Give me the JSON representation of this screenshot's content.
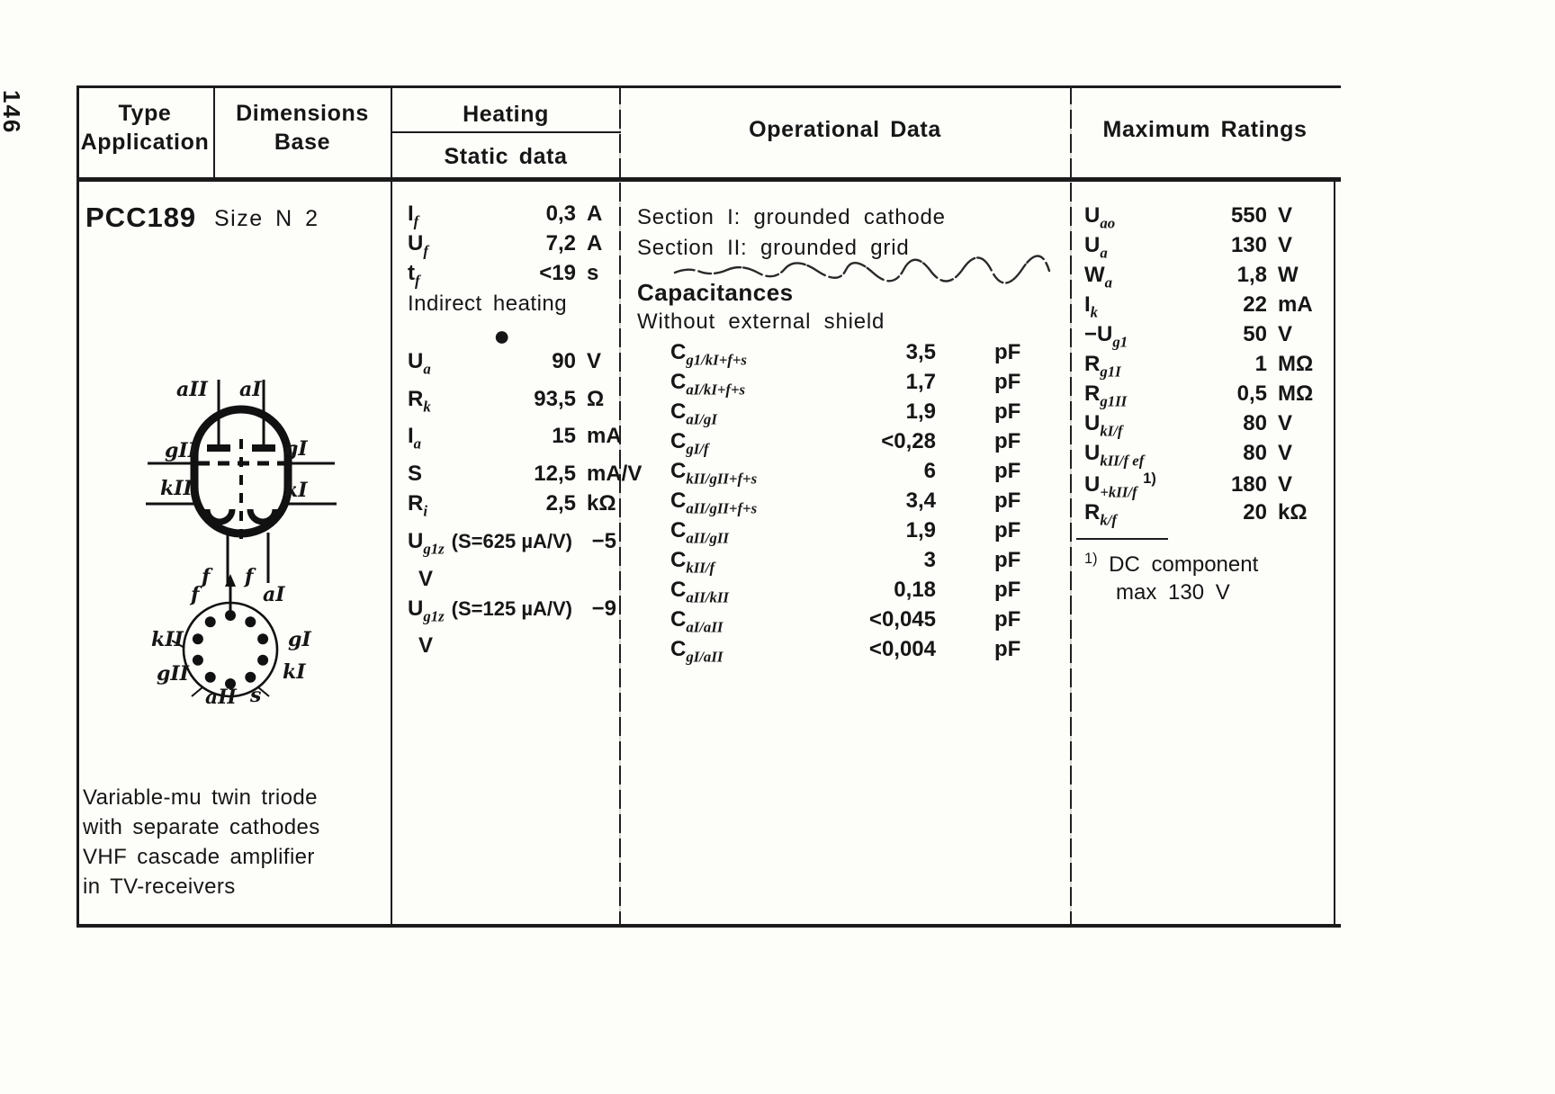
{
  "page": {
    "number": "146"
  },
  "header": {
    "col1_line1": "Type",
    "col1_line2": "Application",
    "col2_line1": "Dimensions",
    "col2_line2": "Base",
    "col3_line1": "Heating",
    "col3_line2": "Static data",
    "col4": "Operational Data",
    "col5": "Maximum Ratings"
  },
  "tube": {
    "type": "PCC189",
    "size": "Size N 2",
    "description": [
      "Variable-mu twin triode",
      "with separate cathodes",
      "VHF cascade amplifier",
      "in TV-receivers"
    ]
  },
  "heating": {
    "rows": [
      {
        "label": "I_{f}",
        "value": "0,3",
        "unit": "A"
      },
      {
        "label": "U_{f}",
        "value": "7,2",
        "unit": "A"
      },
      {
        "label": "t_{f}",
        "value": "<19",
        "unit": "s"
      }
    ],
    "note": "Indirect heating",
    "bullet": "●"
  },
  "static_data": {
    "rows": [
      {
        "label": "U_{a}",
        "cond": "",
        "value": "90",
        "unit": "V"
      },
      {
        "label": "R_{k}",
        "cond": "",
        "value": "93,5",
        "unit": "Ω"
      },
      {
        "label": "I_{a}",
        "cond": "",
        "value": "15",
        "unit": "mA"
      },
      {
        "label": "S",
        "cond": "",
        "value": "12,5",
        "unit": "mA/V"
      },
      {
        "label": "R_{i}",
        "cond": "",
        "value": "2,5",
        "unit": "kΩ"
      },
      {
        "label": "U_{g1z}",
        "cond": "(S=625 µA/V)",
        "value": "−5",
        "unit": "V"
      },
      {
        "label": "U_{g1z}",
        "cond": "(S=125 µA/V)",
        "value": "−9",
        "unit": "V"
      }
    ]
  },
  "operational": {
    "section1": "Section I: grounded cathode",
    "section2": "Section II: grounded grid",
    "capacitances_title": "Capacitances",
    "capacitances_subtitle": "Without external shield",
    "rows": [
      {
        "label": "C_{g1/kI+f+s}",
        "value": "3,5",
        "unit": "pF"
      },
      {
        "label": "C_{aI/kI+f+s}",
        "value": "1,7",
        "unit": "pF"
      },
      {
        "label": "C_{aI/gI}",
        "value": "1,9",
        "unit": "pF"
      },
      {
        "label": "C_{gI/f}",
        "value": "<0,28",
        "unit": "pF"
      },
      {
        "label": "C_{kII/gII+f+s}",
        "value": "6",
        "unit": "pF"
      },
      {
        "label": "C_{aII/gII+f+s}",
        "value": "3,4",
        "unit": "pF"
      },
      {
        "label": "C_{aII/gII}",
        "value": "1,9",
        "unit": "pF"
      },
      {
        "label": "C_{kII/f}",
        "value": "3",
        "unit": "pF"
      },
      {
        "label": "C_{aII/kII}",
        "value": "0,18",
        "unit": "pF"
      },
      {
        "label": "C_{aI/aII}",
        "value": "<0,045",
        "unit": "pF"
      },
      {
        "label": "C_{gI/aII}",
        "value": "<0,004",
        "unit": "pF"
      }
    ]
  },
  "max_ratings": {
    "rows": [
      {
        "label": "U_{ao}",
        "value": "550",
        "unit": "V"
      },
      {
        "label": "U_{a}",
        "value": "130",
        "unit": "V"
      },
      {
        "label": "W_{a}",
        "value": "1,8",
        "unit": "W"
      },
      {
        "label": "I_{k}",
        "value": "22",
        "unit": "mA"
      },
      {
        "label": "−U_{g1}",
        "value": "50",
        "unit": "V"
      },
      {
        "label": "R_{g1I}",
        "value": "1",
        "unit": "MΩ"
      },
      {
        "label": "R_{g1II}",
        "value": "0,5",
        "unit": "MΩ"
      },
      {
        "label": "U_{kI/f}",
        "value": "80",
        "unit": "V"
      },
      {
        "label": "U_{kII/f ef}",
        "value": "80",
        "unit": "V"
      },
      {
        "label": "U_{+kII/f} ^{1)}",
        "value": "180",
        "unit": "V"
      },
      {
        "label": "R_{k/f}",
        "value": "20",
        "unit": "kΩ"
      }
    ],
    "footnote_line1": "^{1)} DC component",
    "footnote_line2": "max 130 V"
  },
  "diagrams": {
    "schematic": {
      "a2": "aII",
      "a1": "aI",
      "g2": "gII",
      "g1": "gI",
      "k2": "kII",
      "k1": "kI",
      "f_left": "f",
      "f_right": "f"
    },
    "pinout": {
      "f": "f",
      "a1": "aI",
      "g1": "gI",
      "k1": "kI",
      "s": "s",
      "a2": "aII",
      "g2": "gII",
      "k2": "kII"
    }
  }
}
